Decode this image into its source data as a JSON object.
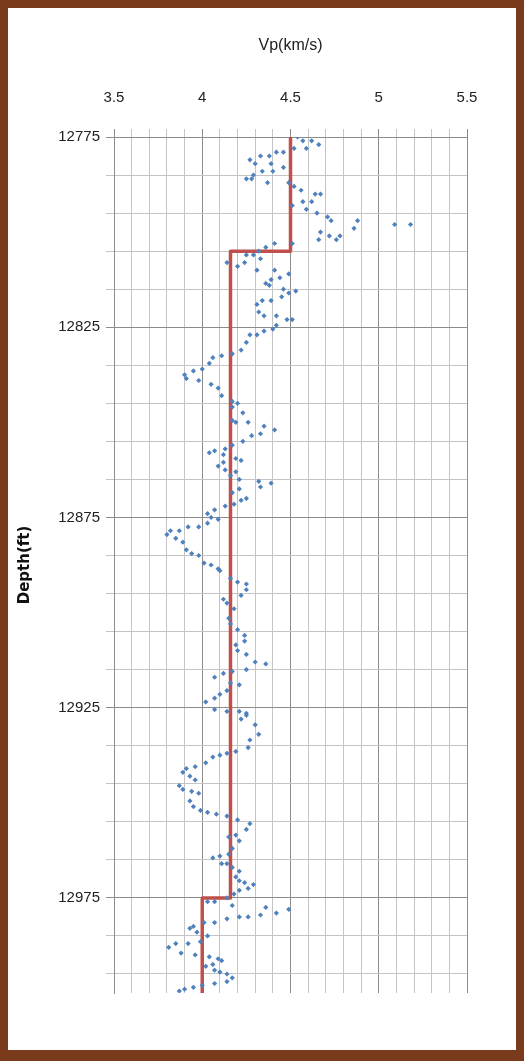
{
  "chart_data": {
    "type": "scatter",
    "xlabel": "Vp(km/s)",
    "ylabel": "Depth(ft)",
    "xlim": [
      3.5,
      5.5
    ],
    "xticks": [
      3.5,
      {
        "value": 3.6,
        "label": null
      },
      {
        "value": 3.7,
        "label": null
      },
      {
        "value": 3.8,
        "label": null
      },
      {
        "value": 3.9,
        "label": null
      },
      4,
      {
        "value": 4.1,
        "label": null
      },
      {
        "value": 4.2,
        "label": null
      },
      {
        "value": 4.3,
        "label": null
      },
      {
        "value": 4.4,
        "label": null
      },
      4.5,
      {
        "value": 4.6,
        "label": null
      },
      {
        "value": 4.7,
        "label": null
      },
      {
        "value": 4.8,
        "label": null
      },
      {
        "value": 4.9,
        "label": null
      },
      5,
      {
        "value": 5.1,
        "label": null
      },
      {
        "value": 5.2,
        "label": null
      },
      {
        "value": 5.3,
        "label": null
      },
      {
        "value": 5.4,
        "label": null
      },
      5.5
    ],
    "ylim": [
      13000,
      12775
    ],
    "yticks": [
      12775,
      {
        "value": 12785,
        "label": null
      },
      {
        "value": 12795,
        "label": null
      },
      {
        "value": 12805,
        "label": null
      },
      {
        "value": 12815,
        "label": null
      },
      12825,
      {
        "value": 12835,
        "label": null
      },
      {
        "value": 12845,
        "label": null
      },
      {
        "value": 12855,
        "label": null
      },
      {
        "value": 12865,
        "label": null
      },
      12875,
      {
        "value": 12885,
        "label": null
      },
      {
        "value": 12895,
        "label": null
      },
      {
        "value": 12905,
        "label": null
      },
      {
        "value": 12915,
        "label": null
      },
      12925,
      {
        "value": 12935,
        "label": null
      },
      {
        "value": 12945,
        "label": null
      },
      {
        "value": 12955,
        "label": null
      },
      {
        "value": 12965,
        "label": null
      },
      12975,
      {
        "value": 12985,
        "label": null
      },
      {
        "value": 12995,
        "label": null
      }
    ],
    "grid": true,
    "series": [
      {
        "type": "scatter",
        "marker": "diamond",
        "color": "#4f81bd",
        "x": [
          4.54,
          4.57,
          4.62,
          4.66,
          4.59,
          4.52,
          4.46,
          4.42,
          4.38,
          4.33,
          4.27,
          4.3,
          4.39,
          4.46,
          4.4,
          4.34,
          4.29,
          4.25,
          4.28,
          4.37,
          4.49,
          4.52,
          4.56,
          4.64,
          4.67,
          4.62,
          4.57,
          4.51,
          4.59,
          4.65,
          4.71,
          4.73,
          4.88,
          4.86,
          5.09,
          5.18,
          4.67,
          4.72,
          4.78,
          4.76,
          4.66,
          4.51,
          4.41,
          4.36,
          4.32,
          4.25,
          4.29,
          4.33,
          4.14,
          4.24,
          4.2,
          4.31,
          4.41,
          4.49,
          4.44,
          4.39,
          4.36,
          4.38,
          4.46,
          4.53,
          4.49,
          4.45,
          4.39,
          4.34,
          4.31,
          4.32,
          4.35,
          4.42,
          4.48,
          4.51,
          4.42,
          4.4,
          4.35,
          4.31,
          4.27,
          4.25,
          4.22,
          4.17,
          4.11,
          4.06,
          4.04,
          4.0,
          3.95,
          3.9,
          3.91,
          3.98,
          4.05,
          4.09,
          4.11,
          4.17,
          4.2,
          4.17,
          4.23,
          4.17,
          4.26,
          4.35,
          4.19,
          4.41,
          4.33,
          4.28,
          4.23,
          4.17,
          4.13,
          4.07,
          4.04,
          4.12,
          4.19,
          4.22,
          4.12,
          4.09,
          4.13,
          4.19,
          4.16,
          4.21,
          4.32,
          4.39,
          4.33,
          4.21,
          4.17,
          4.25,
          4.22,
          4.18,
          4.13,
          4.07,
          4.03,
          4.05,
          4.09,
          4.03,
          3.98,
          3.92,
          3.87,
          3.82,
          3.8,
          3.85,
          3.89,
          3.91,
          3.94,
          3.98,
          4.01,
          4.05,
          4.09,
          4.1,
          4.16,
          4.2,
          4.25,
          4.25,
          4.22,
          4.12,
          4.14,
          4.18,
          4.15,
          4.16,
          4.2,
          4.24,
          4.24,
          4.19,
          4.2,
          4.25,
          4.3,
          4.36,
          4.25,
          4.17,
          4.12,
          4.07,
          4.16,
          4.21,
          4.14,
          4.1,
          4.07,
          4.02,
          4.07,
          4.14,
          4.21,
          4.25,
          4.25,
          4.22,
          4.3,
          4.32,
          4.27,
          4.26,
          4.19,
          4.14,
          4.1,
          4.06,
          4.02,
          3.96,
          3.91,
          3.89,
          3.93,
          3.96,
          3.87,
          3.89,
          3.94,
          3.98,
          3.93,
          3.95,
          3.99,
          4.03,
          4.08,
          4.14,
          4.2,
          4.27,
          4.25,
          4.19,
          4.15,
          4.21,
          4.17,
          4.15,
          4.1,
          4.06,
          4.11,
          4.14,
          4.17,
          4.21,
          4.19,
          4.21,
          4.24,
          4.29,
          4.26,
          4.21,
          4.18,
          4.14,
          4.07,
          4.03,
          4.17,
          4.36,
          4.49,
          4.42,
          4.33,
          4.26,
          4.21,
          4.14,
          4.07,
          4.01,
          3.95,
          3.93,
          3.97,
          4.03,
          3.99,
          3.92,
          3.85,
          3.81,
          3.88,
          3.96,
          4.04,
          4.09,
          4.11,
          4.06,
          4.02,
          4.07,
          4.1,
          4.14,
          4.17,
          4.14,
          4.07,
          4.0,
          3.95,
          3.9,
          3.87
        ],
        "values": [
          12775,
          12776,
          12776,
          12777,
          12778,
          12778,
          12779,
          12779,
          12780,
          12780,
          12781,
          12782,
          12782,
          12783,
          12784,
          12784,
          12785,
          12786,
          12786,
          12787,
          12787,
          12788,
          12789,
          12790,
          12790,
          12792,
          12792,
          12793,
          12794,
          12795,
          12796,
          12797,
          12797,
          12799,
          12798,
          12798,
          12800,
          12801,
          12801,
          12802,
          12802,
          12803,
          12803,
          12804,
          12805,
          12806,
          12806,
          12807,
          12808,
          12808,
          12809,
          12810,
          12810,
          12811,
          12812,
          12812.5,
          12813.5,
          12814,
          12815,
          12815.5,
          12816,
          12817,
          12818,
          12818,
          12819,
          12821,
          12822,
          12822,
          12823,
          12823,
          12824.5,
          12825.5,
          12826,
          12827,
          12827,
          12829,
          12831,
          12832,
          12832.5,
          12833,
          12834.5,
          12836,
          12836.5,
          12837.5,
          12838.5,
          12839,
          12840,
          12841,
          12843,
          12844.5,
          12845,
          12846,
          12847.5,
          12849.5,
          12850,
          12851,
          12850,
          12852,
          12853,
          12853.5,
          12855,
          12856,
          12857,
          12857.5,
          12858,
          12858.5,
          12859.5,
          12860,
          12860.5,
          12861.5,
          12862.5,
          12863,
          12864,
          12865,
          12865.5,
          12866,
          12867,
          12867.5,
          12868.5,
          12870,
          12870.5,
          12871.5,
          12872,
          12873,
          12874,
          12875,
          12875.5,
          12876.5,
          12877.5,
          12877.5,
          12878.5,
          12878.5,
          12879.5,
          12880.5,
          12881.5,
          12883.5,
          12884.5,
          12885,
          12887,
          12887.5,
          12888.5,
          12889,
          12891,
          12892,
          12892.5,
          12894,
          12895.5,
          12896.5,
          12897.5,
          12899,
          12901.5,
          12903,
          12904.5,
          12906,
          12907.5,
          12908.5,
          12910,
          12911,
          12913,
          12913.5,
          12915,
          12915.5,
          12916,
          12917,
          12918.5,
          12919,
          12920.5,
          12921.5,
          12922.5,
          12923.5,
          12925.5,
          12926,
          12926,
          12926.5,
          12927,
          12928,
          12929.5,
          12932,
          12933.5,
          12935.5,
          12936.5,
          12937,
          12937.5,
          12938,
          12939.5,
          12940.5,
          12941,
          12942,
          12943,
          12944,
          12945.5,
          12946.5,
          12947,
          12947.5,
          12949.5,
          12951,
          12952,
          12952.5,
          12953,
          12953.5,
          12954.5,
          12955.5,
          12957,
          12958.5,
          12959,
          12960,
          12962,
          12963.5,
          12964,
          12964.5,
          12966,
          12966,
          12967,
          12968,
          12969.5,
          12970.5,
          12971,
          12971.5,
          12972.5,
          12973,
          12974,
          12975,
          12976,
          12976,
          12977,
          12977.5,
          12978,
          12979,
          12979.5,
          12980,
          12980,
          12980.5,
          12981.5,
          12981.5,
          12982.5,
          12983,
          12984,
          12985,
          12986.5,
          12987,
          12987,
          12988,
          12989.5,
          12990,
          12990.5,
          12991,
          12991.5,
          12992.5,
          12993,
          12994,
          12994.5,
          12995,
          12996,
          12997,
          12997.5,
          12998,
          12998.5,
          12999,
          12999.5
        ]
      },
      {
        "type": "line",
        "color": "#c0504d",
        "x": [
          4.5,
          4.5,
          4.16,
          4.16,
          4.0,
          4.0
        ],
        "values": [
          12775,
          12805,
          12805,
          12975,
          12975,
          13000
        ]
      }
    ]
  }
}
